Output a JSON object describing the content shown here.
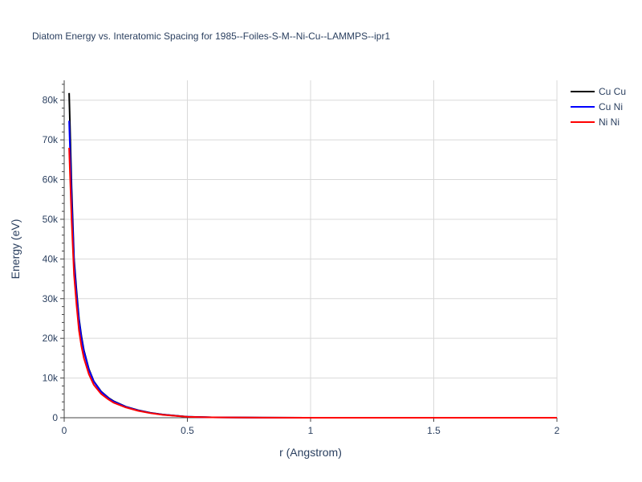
{
  "chart_data": {
    "type": "line",
    "title": "Diatom Energy vs. Interatomic Spacing for 1985--Foiles-S-M--Ni-Cu--LAMMPS--ipr1",
    "xlabel": "r (Angstrom)",
    "ylabel": "Energy (eV)",
    "xlim": [
      0,
      2
    ],
    "ylim": [
      0,
      85000
    ],
    "x_ticks": [
      0,
      0.5,
      1,
      1.5,
      2
    ],
    "x_tick_labels": [
      "0",
      "0.5",
      "1",
      "1.5",
      "2"
    ],
    "y_ticks": [
      0,
      10000,
      20000,
      30000,
      40000,
      50000,
      60000,
      70000,
      80000
    ],
    "y_tick_labels": [
      "0",
      "10k",
      "20k",
      "30k",
      "40k",
      "50k",
      "60k",
      "70k",
      "80k"
    ],
    "grid": true,
    "legend_position": "top-right",
    "series": [
      {
        "name": "Cu Cu",
        "color": "#000000",
        "x": [
          0.02,
          0.03,
          0.04,
          0.05,
          0.06,
          0.07,
          0.08,
          0.1,
          0.12,
          0.15,
          0.18,
          0.2,
          0.25,
          0.3,
          0.35,
          0.4,
          0.5,
          0.6,
          0.8,
          1.0,
          1.5,
          2.0
        ],
        "y": [
          81800,
          58000,
          40000,
          32000,
          25000,
          20500,
          17000,
          12300,
          9200,
          6600,
          5000,
          4200,
          2800,
          1900,
          1250,
          800,
          250,
          100,
          30,
          10,
          2,
          0
        ]
      },
      {
        "name": "Cu Ni",
        "color": "#0000ff",
        "x": [
          0.02,
          0.03,
          0.04,
          0.05,
          0.06,
          0.07,
          0.08,
          0.1,
          0.12,
          0.15,
          0.18,
          0.2,
          0.25,
          0.3,
          0.35,
          0.4,
          0.5,
          0.6,
          0.8,
          1.0,
          1.5,
          2.0
        ],
        "y": [
          74800,
          55000,
          39000,
          31000,
          24500,
          20000,
          16700,
          12100,
          9100,
          6500,
          4900,
          4100,
          2750,
          1850,
          1200,
          780,
          240,
          95,
          28,
          9,
          2,
          0
        ]
      },
      {
        "name": "Ni Ni",
        "color": "#ff0000",
        "x": [
          0.02,
          0.03,
          0.04,
          0.05,
          0.06,
          0.07,
          0.08,
          0.1,
          0.12,
          0.15,
          0.18,
          0.2,
          0.25,
          0.3,
          0.35,
          0.4,
          0.5,
          0.6,
          0.8,
          1.0,
          1.5,
          2.0
        ],
        "y": [
          68000,
          50000,
          36000,
          28500,
          22000,
          18000,
          15000,
          11000,
          8300,
          6000,
          4600,
          3800,
          2600,
          1750,
          1150,
          740,
          230,
          90,
          26,
          8,
          2,
          0
        ]
      }
    ]
  }
}
